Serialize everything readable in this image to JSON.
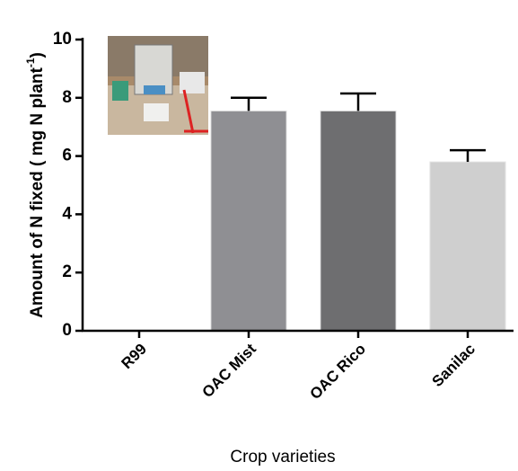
{
  "chart_data": {
    "type": "bar",
    "y_label": {
      "text": "Amount of N fixed ( mg N plant",
      "sup": "-1",
      "end": ")"
    },
    "x_label": "Crop varieties",
    "categories": [
      "R99",
      "OAC Mist",
      "OAC Rico",
      "Sanilac"
    ],
    "values": [
      0,
      7.55,
      7.55,
      5.8
    ],
    "errors": [
      null,
      0.45,
      0.6,
      0.4
    ],
    "colors": [
      "#8f8f93",
      "#8f8f93",
      "#6e6e70",
      "#cfcfcf"
    ],
    "ylim": [
      0,
      10
    ],
    "yticks": [
      0,
      2,
      4,
      6,
      8,
      10
    ]
  }
}
